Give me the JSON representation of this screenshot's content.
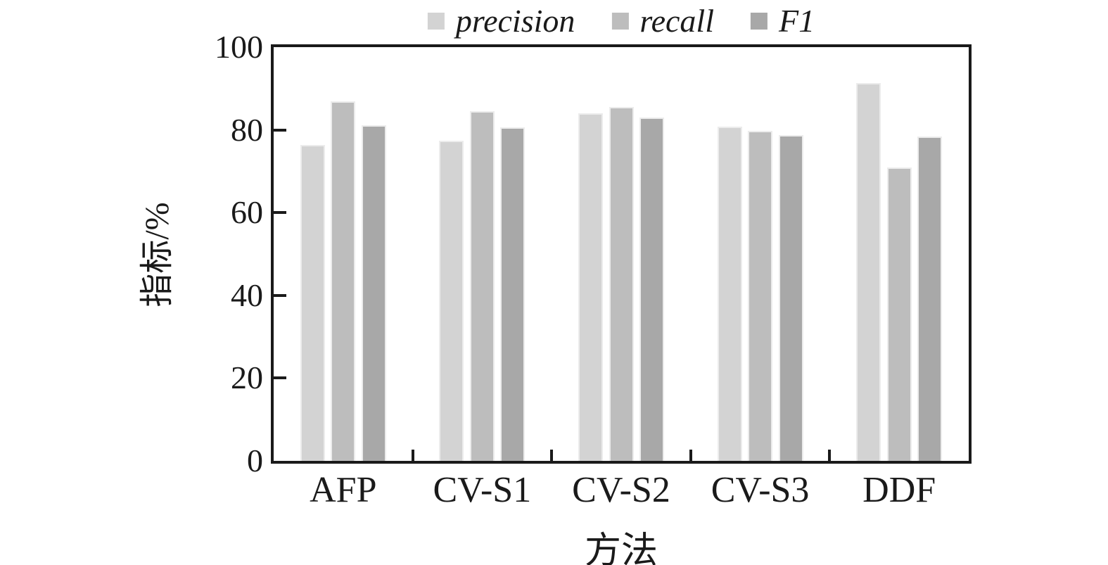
{
  "chart_data": {
    "type": "bar",
    "categories": [
      "AFP",
      "CV-S1",
      "CV-S2",
      "CV-S3",
      "DDF"
    ],
    "series": [
      {
        "name": "precision",
        "color": "#d3d3d3",
        "values": [
          76.3,
          77.4,
          84.0,
          80.7,
          91.3
        ]
      },
      {
        "name": "recall",
        "color": "#bdbdbd",
        "values": [
          86.9,
          84.5,
          85.5,
          79.8,
          70.9
        ]
      },
      {
        "name": "F1",
        "color": "#a8a8a8",
        "values": [
          81.1,
          80.6,
          83.0,
          78.8,
          78.4
        ]
      }
    ],
    "title": "",
    "xlabel": "方法",
    "ylabel": "指标/%",
    "ylim": [
      0,
      100
    ],
    "yticks": [
      0,
      20,
      40,
      60,
      80,
      100
    ],
    "legend_position": "top-center",
    "grid": false,
    "axis_color": "#1a1a1a"
  }
}
